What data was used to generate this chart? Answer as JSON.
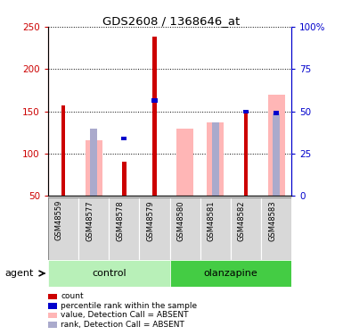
{
  "title": "GDS2608 / 1368646_at",
  "samples": [
    "GSM48559",
    "GSM48577",
    "GSM48578",
    "GSM48579",
    "GSM48580",
    "GSM48581",
    "GSM48582",
    "GSM48583"
  ],
  "red_bars": [
    157,
    null,
    91,
    238,
    null,
    null,
    150,
    null
  ],
  "pink_bars": [
    null,
    116,
    null,
    null,
    130,
    137,
    null,
    170
  ],
  "blue_squares": [
    null,
    null,
    118,
    163,
    null,
    null,
    150,
    148
  ],
  "light_blue_bars": [
    null,
    130,
    null,
    null,
    null,
    137,
    null,
    148
  ],
  "ylim_left": [
    50,
    250
  ],
  "ylim_right": [
    0,
    100
  ],
  "y_ticks_left": [
    50,
    100,
    150,
    200,
    250
  ],
  "y_ticks_right": [
    0,
    25,
    50,
    75,
    100
  ],
  "y_tick_labels_right": [
    "0",
    "25",
    "50",
    "75",
    "100%"
  ],
  "red_color": "#cc0000",
  "pink_color": "#ffb6b6",
  "blue_color": "#0000cc",
  "light_blue_color": "#aaaacc",
  "control_green_light": "#b8f0b8",
  "control_green_dark": "#44cc44",
  "legend_labels": [
    "count",
    "percentile rank within the sample",
    "value, Detection Call = ABSENT",
    "rank, Detection Call = ABSENT"
  ]
}
